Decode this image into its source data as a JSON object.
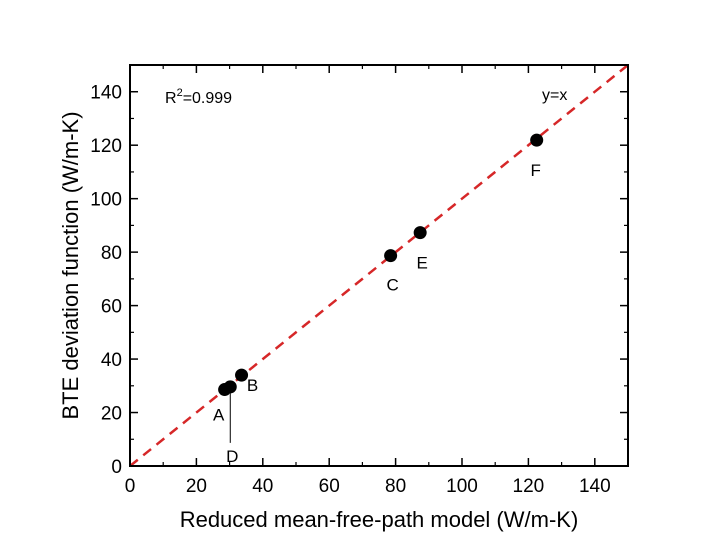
{
  "chart_data": {
    "type": "scatter",
    "xlabel": "Reduced mean-free-path model (W/m-K)",
    "ylabel": "BTE deviation function (W/m-K)",
    "xlim": [
      0,
      150
    ],
    "ylim": [
      0,
      150
    ],
    "xticks": [
      0,
      20,
      40,
      60,
      80,
      100,
      120,
      140
    ],
    "yticks": [
      0,
      20,
      40,
      60,
      80,
      100,
      120,
      140
    ],
    "grid": false,
    "points": [
      {
        "label": "A",
        "x": 28.5,
        "y": 28.6
      },
      {
        "label": "D",
        "x": 30.2,
        "y": 29.6
      },
      {
        "label": "B",
        "x": 33.6,
        "y": 34.0
      },
      {
        "label": "C",
        "x": 78.5,
        "y": 78.7
      },
      {
        "label": "E",
        "x": 87.4,
        "y": 87.3
      },
      {
        "label": "F",
        "x": 122.5,
        "y": 121.9
      }
    ],
    "reference_line": {
      "label": "y=x",
      "color": "#d62728",
      "style": "dashed",
      "from": [
        0,
        0
      ],
      "to": [
        150,
        150
      ]
    },
    "annotation": {
      "r2_prefix": "R",
      "r2_sup": "2",
      "r2_value": "=0.999"
    }
  }
}
